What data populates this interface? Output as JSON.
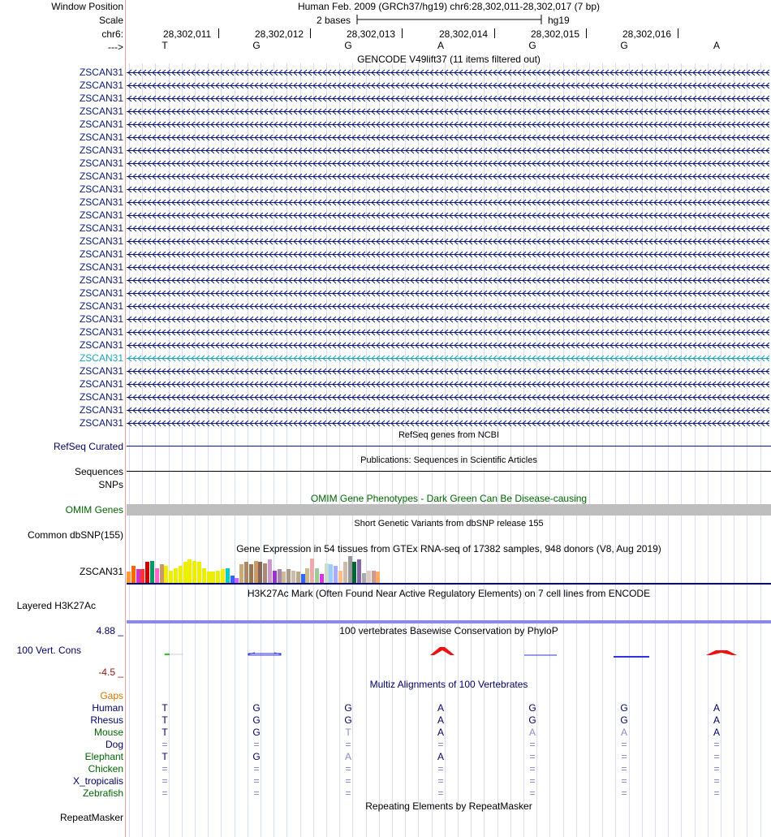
{
  "header": {
    "window_position_label": "Window Position",
    "window_position": "Human Feb. 2009 (GRCh37/hg19)   chr6:28,302,011-28,302,017 (7 bp)",
    "scale_label": "Scale",
    "scale_text": "2 bases",
    "scale_assembly": "hg19",
    "chrom_label": "chr6:",
    "strand_label": "--->",
    "coords": [
      "28,302,011",
      "28,302,012",
      "28,302,013",
      "28,302,014",
      "28,302,015",
      "28,302,016"
    ],
    "bases": [
      "T",
      "G",
      "G",
      "A",
      "G",
      "G",
      "A"
    ]
  },
  "gencode": {
    "title": "GENCODE V49lift37 (11 items filtered out)",
    "gene_label": "ZSCAN31",
    "highlighted_row": 22,
    "rows": 28,
    "gene_color": "#0b1a7a",
    "highlight_color": "#1fa2b8"
  },
  "refseq": {
    "label": "RefSeq Curated",
    "title": "RefSeq genes from NCBI"
  },
  "publications": {
    "label": "Sequences",
    "title": "Publications: Sequences in Scientific Articles"
  },
  "snps": {
    "label": "SNPs"
  },
  "omim": {
    "label": "OMIM Genes",
    "title": "OMIM Gene Phenotypes - Dark Green Can Be Disease-causing",
    "color": "#006400"
  },
  "dbsnp": {
    "label": "Common dbSNP(155)",
    "title": "Short Genetic Variants from dbSNP release 155"
  },
  "gtex": {
    "title": "Gene Expression in 54 tissues from GTEx RNA-seq of 17382 samples, 948 donors (V8, Aug 2019)",
    "gene_label": "ZSCAN31",
    "bar_colors": [
      "#ff9933",
      "#ff6600",
      "#cc33cc",
      "#ff3333",
      "#cc0000",
      "#009966",
      "#ff66cc",
      "#cc9966",
      "#eeee00",
      "#eeee00",
      "#eeee00",
      "#eeee00",
      "#eeee00",
      "#eeee00",
      "#eeee00",
      "#eeee00",
      "#eeee00",
      "#eeee00",
      "#eeee00",
      "#eeee00",
      "#eeee00",
      "#00cccc",
      "#3366ff",
      "#cc66ff",
      "#ccaa77",
      "#aa8866",
      "#997755",
      "#cc9966",
      "#886655",
      "#aa8877",
      "#cc99cc",
      "#9933cc",
      "#aa88aa",
      "#ccbb99",
      "#aa9988",
      "#ccbbaa",
      "#bbaa88",
      "#3366ff",
      "#ccbb88",
      "#eeaaaa",
      "#99cc99",
      "#dd33dd",
      "#ccddcc",
      "#99ccff",
      "#aaaaff",
      "#ffbb88",
      "#ccbbaa",
      "#999999",
      "#006633",
      "#8866aa",
      "#aaaaaa",
      "#ddccbb",
      "#cc9999",
      "#ffaa66"
    ],
    "bar_levels": [
      0.45,
      0.7,
      0.55,
      0.55,
      0.85,
      0.9,
      0.6,
      0.75,
      0.7,
      0.5,
      0.6,
      0.7,
      0.85,
      0.95,
      0.9,
      0.85,
      0.6,
      0.45,
      0.45,
      0.5,
      0.55,
      0.6,
      0.3,
      0.2,
      0.75,
      0.85,
      0.75,
      0.9,
      0.85,
      0.8,
      0.95,
      0.5,
      0.55,
      0.45,
      0.55,
      0.5,
      0.45,
      0.35,
      0.6,
      1.0,
      0.6,
      0.35,
      0.8,
      0.75,
      0.7,
      0.5,
      0.85,
      1.1,
      0.85,
      0.95,
      0.4,
      0.5,
      0.5,
      0.45
    ]
  },
  "h3k27ac": {
    "label": "Layered H3K27Ac",
    "title": "H3K27Ac Mark (Often Found Near Active Regulatory Elements) on 7 cell lines from ENCODE"
  },
  "phylop": {
    "label": "100 Vert. Cons",
    "max_label": "4.88 _",
    "min_label": "-4.5 _",
    "title": "100 vertebrates Basewise Conservation by PhyloP",
    "title_color": "#3333aa"
  },
  "multiz": {
    "title": "Multiz Alignments of 100 Vertebrates",
    "gaps_label": "Gaps",
    "species": [
      {
        "name": "Human",
        "color": "#000066",
        "bases": [
          "T",
          "G",
          "G",
          "A",
          "G",
          "G",
          "A"
        ],
        "dim": [
          false,
          false,
          false,
          false,
          false,
          false,
          false
        ]
      },
      {
        "name": "Rhesus",
        "color": "#000066",
        "bases": [
          "T",
          "G",
          "G",
          "A",
          "G",
          "G",
          "A"
        ],
        "dim": [
          false,
          false,
          false,
          false,
          false,
          false,
          false
        ]
      },
      {
        "name": "Mouse",
        "color": "#006400",
        "bases": [
          "T",
          "G",
          "T",
          "A",
          "A",
          "A",
          "A"
        ],
        "dim": [
          false,
          false,
          true,
          false,
          true,
          true,
          false
        ]
      },
      {
        "name": "Dog",
        "color": "#000066",
        "bases": [
          "=",
          "=",
          "=",
          "=",
          "=",
          "=",
          "="
        ],
        "dim": [
          true,
          true,
          true,
          true,
          true,
          true,
          true
        ]
      },
      {
        "name": "Elephant",
        "color": "#006400",
        "bases": [
          "T",
          "G",
          "A",
          "A",
          "=",
          "=",
          "="
        ],
        "dim": [
          false,
          false,
          true,
          false,
          true,
          true,
          true
        ]
      },
      {
        "name": "Chicken",
        "color": "#006400",
        "bases": [
          "=",
          "=",
          "=",
          "=",
          "=",
          "=",
          "="
        ],
        "dim": [
          true,
          true,
          true,
          true,
          true,
          true,
          true
        ]
      },
      {
        "name": "X_tropicalis",
        "color": "#000066",
        "bases": [
          "=",
          "=",
          "=",
          "=",
          "=",
          "=",
          "="
        ],
        "dim": [
          true,
          true,
          true,
          true,
          true,
          true,
          true
        ]
      },
      {
        "name": "Zebrafish",
        "color": "#006400",
        "bases": [
          "=",
          "=",
          "=",
          "=",
          "=",
          "=",
          "="
        ],
        "dim": [
          true,
          true,
          true,
          true,
          true,
          true,
          true
        ]
      }
    ]
  },
  "repeatmasker": {
    "label": "RepeatMasker",
    "title": "Repeating Elements by RepeatMasker"
  }
}
